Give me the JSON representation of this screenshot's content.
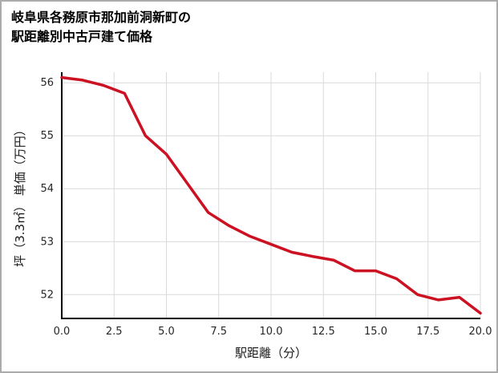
{
  "title": {
    "line1": "岐阜県各務原市那加前洞新町の",
    "line2": "駅距離別中古戸建て価格"
  },
  "chart_data": {
    "type": "line",
    "title": "岐阜県各務原市那加前洞新町の駅距離別中古戸建て価格",
    "xlabel": "駅距離（分）",
    "ylabel": "坪（3.3㎡） 単価（万円）",
    "x": [
      0,
      1,
      2,
      3,
      4,
      5,
      6,
      7,
      8,
      9,
      10,
      11,
      12,
      13,
      14,
      15,
      16,
      17,
      18,
      19,
      20
    ],
    "values": [
      56.1,
      56.05,
      55.95,
      55.8,
      55.0,
      54.65,
      54.1,
      53.55,
      53.3,
      53.1,
      52.95,
      52.8,
      52.72,
      52.65,
      52.45,
      52.45,
      52.3,
      52.0,
      51.9,
      51.95,
      51.65
    ],
    "xlim": [
      0,
      20
    ],
    "ylim": [
      51.55,
      56.2
    ],
    "x_ticks": [
      0,
      2.5,
      5,
      7.5,
      10,
      12.5,
      15,
      17.5,
      20
    ],
    "x_tick_labels": [
      "0.0",
      "2.5",
      "5.0",
      "7.5",
      "10.0",
      "12.5",
      "15.0",
      "17.5",
      "20.0"
    ],
    "y_ticks": [
      52,
      53,
      54,
      55,
      56
    ],
    "y_tick_labels": [
      "52",
      "53",
      "54",
      "55",
      "56"
    ],
    "grid": true,
    "legend": "none",
    "colors": {
      "line": "#cc1122",
      "grid": "#d9d9d9",
      "axis": "#000000",
      "tick_text": "#262626",
      "axis_title_text": "#1a1a1a"
    }
  }
}
